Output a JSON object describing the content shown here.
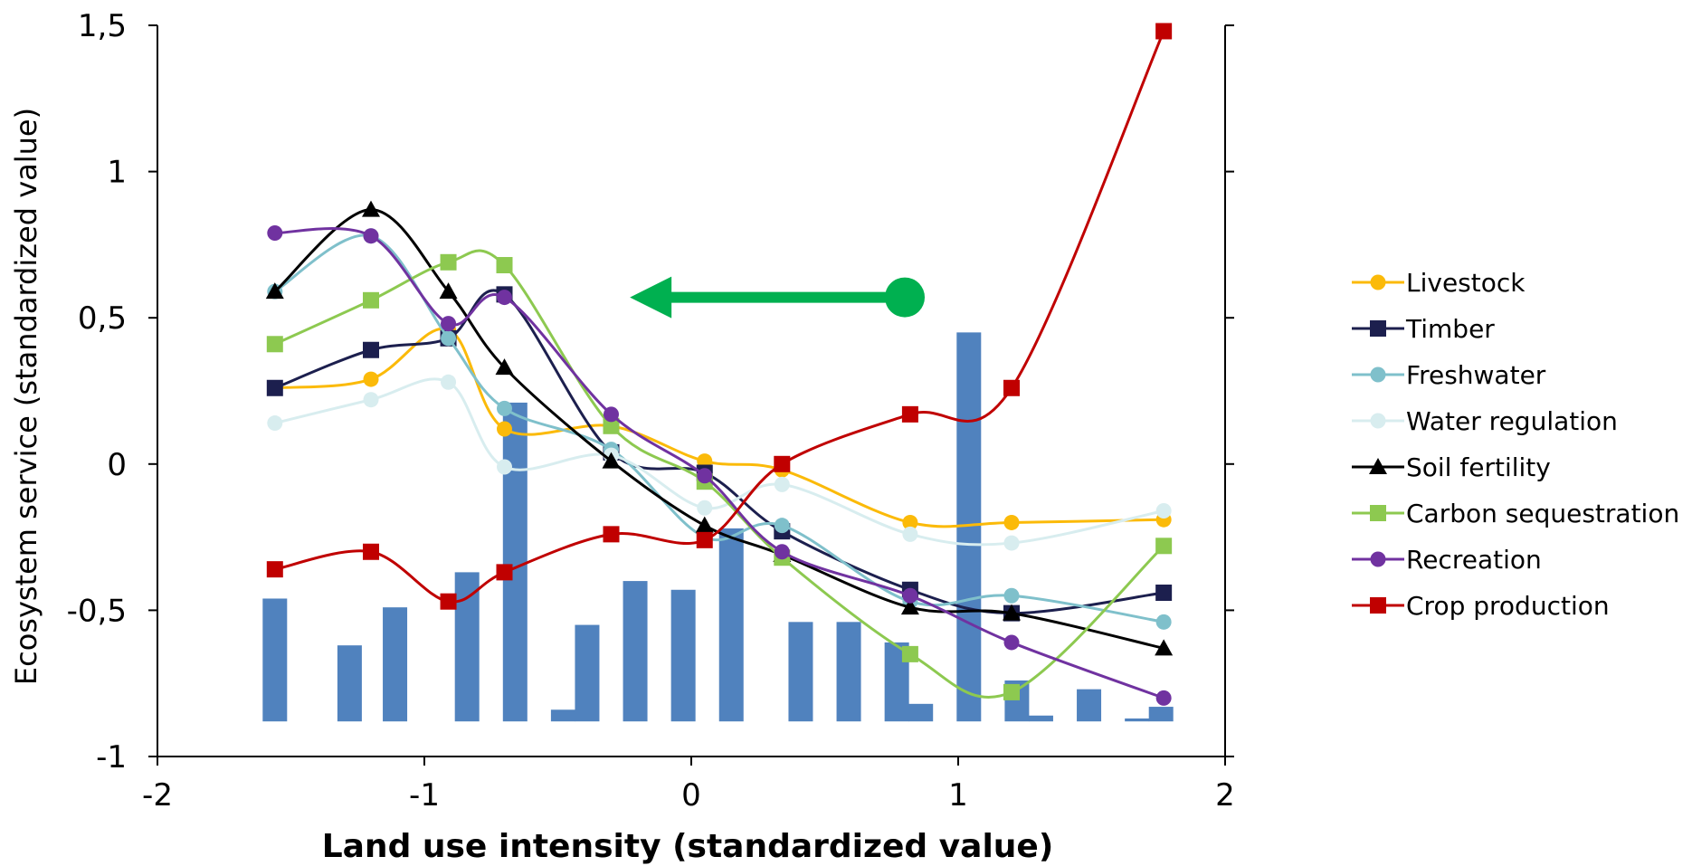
{
  "chart_data": {
    "type": "line",
    "xlabel": "Land use intensity (standardized value)",
    "ylabel": "Ecosystem service (standardized value)",
    "xlim": [
      -2,
      2
    ],
    "ylim": [
      -1,
      1.5
    ],
    "x_ticks": [
      "-2",
      "-1",
      "0",
      "1",
      "2"
    ],
    "y_ticks": [
      "-1",
      "-0,5",
      "0",
      "0,5",
      "1",
      "1,5"
    ],
    "grid": false,
    "legend_position": "right",
    "x": [
      -1.56,
      -1.2,
      -0.91,
      -0.7,
      -0.3,
      0.05,
      0.34,
      0.82,
      1.2,
      1.77
    ],
    "series": [
      {
        "name": "Livestock",
        "color": "#FBBA09",
        "marker": "circle",
        "values": [
          0.26,
          0.29,
          0.46,
          0.12,
          0.13,
          0.01,
          -0.02,
          -0.2,
          -0.2,
          -0.19
        ]
      },
      {
        "name": "Timber",
        "color": "#1C1F4E",
        "marker": "square",
        "values": [
          0.26,
          0.39,
          0.43,
          0.58,
          0.04,
          -0.03,
          -0.23,
          -0.43,
          -0.51,
          -0.44
        ]
      },
      {
        "name": "Freshwater",
        "color": "#7FC0CB",
        "marker": "circle",
        "values": [
          0.59,
          0.78,
          0.43,
          0.19,
          0.05,
          -0.25,
          -0.21,
          -0.47,
          -0.45,
          -0.54
        ]
      },
      {
        "name": "Water regulation",
        "color": "#D8EDEF",
        "marker": "circle",
        "values": [
          0.14,
          0.22,
          0.28,
          -0.01,
          0.03,
          -0.15,
          -0.07,
          -0.24,
          -0.27,
          -0.16
        ]
      },
      {
        "name": "Soil fertility",
        "color": "#000000",
        "marker": "triangle",
        "values": [
          0.59,
          0.87,
          0.59,
          0.33,
          0.01,
          -0.21,
          -0.31,
          -0.49,
          -0.51,
          -0.63
        ]
      },
      {
        "name": "Carbon sequestration",
        "color": "#8DC950",
        "marker": "square",
        "values": [
          0.41,
          0.56,
          0.69,
          0.68,
          0.13,
          -0.06,
          -0.32,
          -0.65,
          -0.78,
          -0.28
        ]
      },
      {
        "name": "Recreation",
        "color": "#7032A0",
        "marker": "circle",
        "values": [
          0.79,
          0.78,
          0.48,
          0.57,
          0.17,
          -0.04,
          -0.3,
          -0.45,
          -0.61,
          -0.8
        ]
      },
      {
        "name": "Crop production",
        "color": "#C00000",
        "marker": "square",
        "values": [
          -0.36,
          -0.3,
          -0.47,
          -0.37,
          -0.24,
          -0.26,
          0.0,
          0.17,
          0.26,
          1.48
        ]
      }
    ],
    "histogram": {
      "color": "#5082BE",
      "baseline": -0.88,
      "bars": [
        {
          "x": -1.56,
          "value": -0.46
        },
        {
          "x": -1.28,
          "value": -0.62
        },
        {
          "x": -1.11,
          "value": -0.49
        },
        {
          "x": -0.84,
          "value": -0.37
        },
        {
          "x": -0.66,
          "value": 0.21
        },
        {
          "x": -0.48,
          "value": -0.84
        },
        {
          "x": -0.39,
          "value": -0.55
        },
        {
          "x": -0.21,
          "value": -0.4
        },
        {
          "x": -0.03,
          "value": -0.43
        },
        {
          "x": 0.15,
          "value": -0.22
        },
        {
          "x": 0.41,
          "value": -0.54
        },
        {
          "x": 0.59,
          "value": -0.54
        },
        {
          "x": 0.77,
          "value": -0.61
        },
        {
          "x": 0.86,
          "value": -0.82
        },
        {
          "x": 1.04,
          "value": 0.45
        },
        {
          "x": 1.22,
          "value": -0.74
        },
        {
          "x": 1.31,
          "value": -0.86
        },
        {
          "x": 1.49,
          "value": -0.77
        },
        {
          "x": 1.67,
          "value": -0.87
        },
        {
          "x": 1.76,
          "value": -0.83
        }
      ]
    },
    "annotation": {
      "type": "arrow",
      "color": "#00B050",
      "from": {
        "x": 0.8,
        "y": 0.57
      },
      "to": {
        "x": -0.23,
        "y": 0.57
      }
    }
  }
}
